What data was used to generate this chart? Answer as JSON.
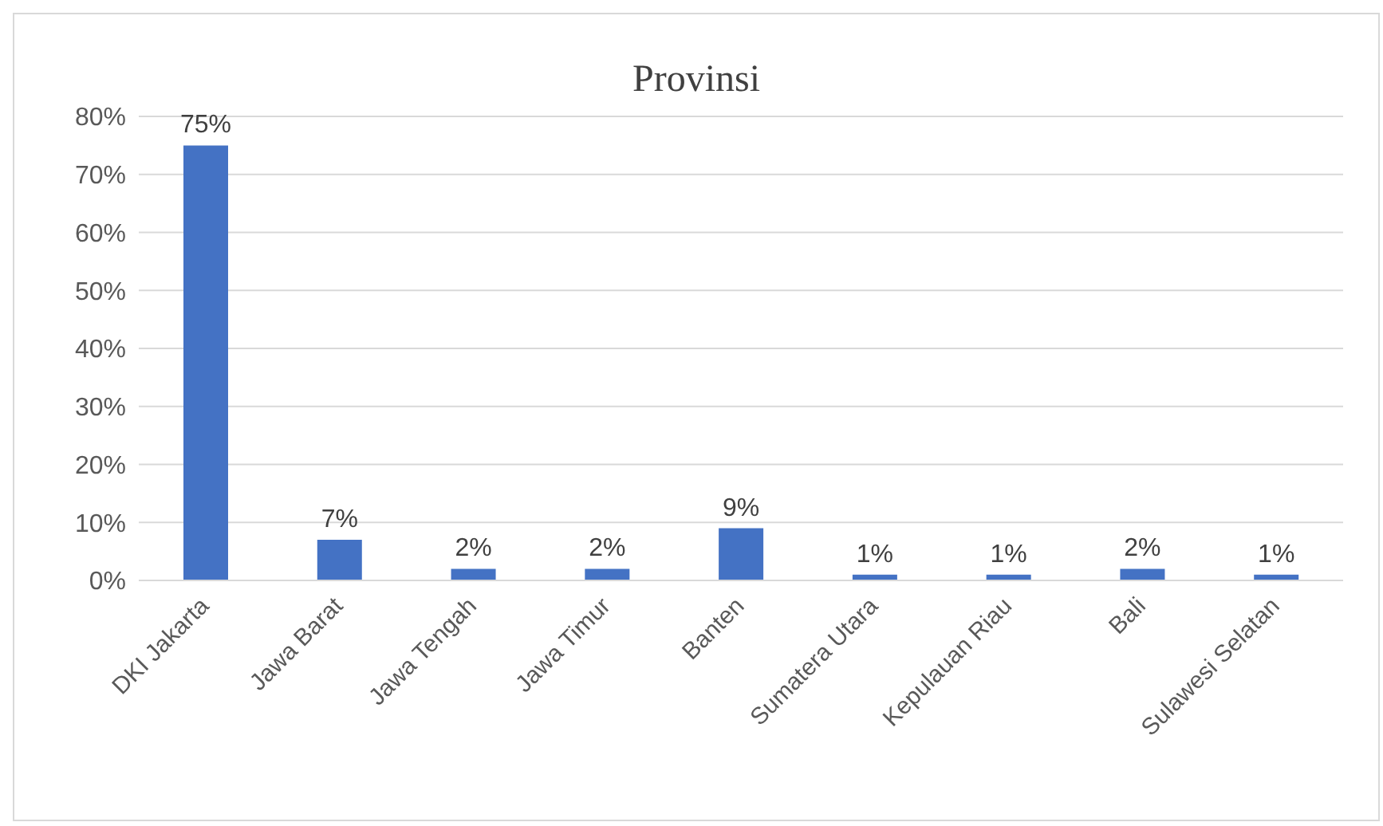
{
  "chart_data": {
    "type": "bar",
    "title": "Provinsi",
    "categories": [
      "DKI Jakarta",
      "Jawa Barat",
      "Jawa Tengah",
      "Jawa Timur",
      "Banten",
      "Sumatera Utara",
      "Kepulauan Riau",
      "Bali",
      "Sulawesi Selatan"
    ],
    "values": [
      75,
      7,
      2,
      2,
      9,
      1,
      1,
      2,
      1
    ],
    "value_labels": [
      "75%",
      "7%",
      "2%",
      "2%",
      "9%",
      "1%",
      "1%",
      "2%",
      "1%"
    ],
    "color": "#4472c4",
    "ylim": [
      0,
      80
    ],
    "yticks": [
      {
        "value": 0,
        "label": "0%"
      },
      {
        "value": 10,
        "label": "10%"
      },
      {
        "value": 20,
        "label": "20%"
      },
      {
        "value": 30,
        "label": "30%"
      },
      {
        "value": 40,
        "label": "40%"
      },
      {
        "value": 50,
        "label": "50%"
      },
      {
        "value": 60,
        "label": "60%"
      },
      {
        "value": 70,
        "label": "70%"
      },
      {
        "value": 80,
        "label": "80%"
      }
    ],
    "grid": "y",
    "legend": false
  }
}
